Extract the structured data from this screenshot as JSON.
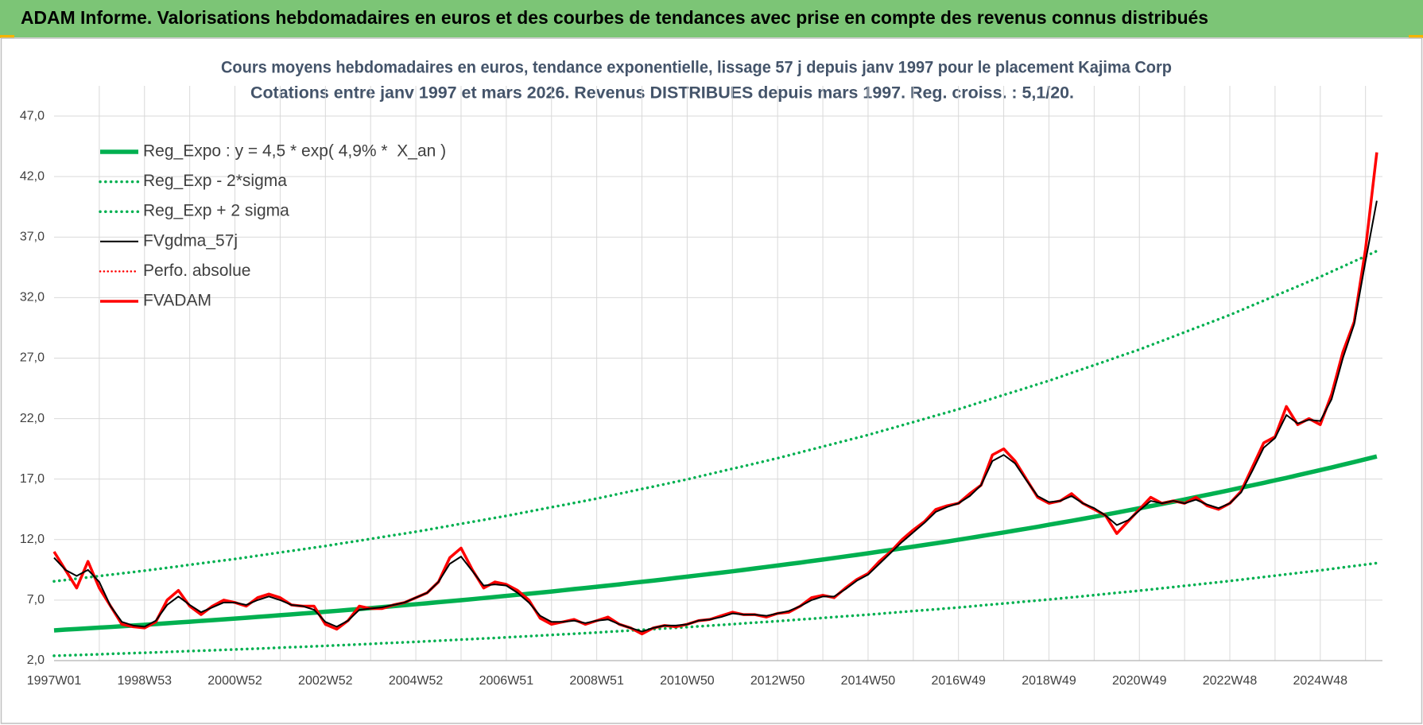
{
  "header": {
    "title": "ADAM Informe. Valorisations hebdomadaires en euros et des courbes de tendances avec prise en compte des revenus connus distribués"
  },
  "chart_data": {
    "type": "line",
    "title": [
      "Cours moyens hebdomadaires en euros, tendance exponentielle, lissage 57 j depuis janv 1997  pour le placement Kajima Corp",
      "Cotations entre janv 1997 et mars 2026. Revenus DISTRIBUES depuis mars 1997. Reg. croiss. : 5,1/20."
    ],
    "categories": [
      "1997W01",
      null,
      null,
      null,
      null,
      null,
      null,
      null,
      "1998W53",
      null,
      null,
      null,
      null,
      null,
      null,
      null,
      "2000W52",
      null,
      null,
      null,
      null,
      null,
      null,
      null,
      "2002W52",
      null,
      null,
      null,
      null,
      null,
      null,
      null,
      "2004W52",
      null,
      null,
      null,
      null,
      null,
      null,
      null,
      "2006W51",
      null,
      null,
      null,
      null,
      null,
      null,
      null,
      "2008W51",
      null,
      null,
      null,
      null,
      null,
      null,
      null,
      "2010W50",
      null,
      null,
      null,
      null,
      null,
      null,
      null,
      "2012W50",
      null,
      null,
      null,
      null,
      null,
      null,
      null,
      "2014W50",
      null,
      null,
      null,
      null,
      null,
      null,
      null,
      "2016W49",
      null,
      null,
      null,
      null,
      null,
      null,
      null,
      "2018W49",
      null,
      null,
      null,
      null,
      null,
      null,
      null,
      "2020W49",
      null,
      null,
      null,
      null,
      null,
      null,
      null,
      "2022W48",
      null,
      null,
      null,
      null,
      null,
      null,
      null,
      "2024W48",
      null,
      null,
      null,
      null,
      null
    ],
    "ylim": [
      2,
      49.5
    ],
    "yticks": [
      {
        "value": 2,
        "label": "2,0"
      },
      {
        "value": 7,
        "label": "7,0"
      },
      {
        "value": 12,
        "label": "12,0"
      },
      {
        "value": 17,
        "label": "17,0"
      },
      {
        "value": 22,
        "label": "22,0"
      },
      {
        "value": 27,
        "label": "27,0"
      },
      {
        "value": 32,
        "label": "32,0"
      },
      {
        "value": 37,
        "label": "37,0"
      },
      {
        "value": 42,
        "label": "42,0"
      },
      {
        "value": 47,
        "label": "47,0"
      }
    ],
    "grid": true,
    "legend": "upper left",
    "series": [
      {
        "name": "Reg_Expo : y = 4,5 * exp( 4,9% *  X_an )",
        "color": "#00b050",
        "style": "solid",
        "width": 5.5,
        "values": [
          4.5,
          4.56,
          4.61,
          4.67,
          4.73,
          4.78,
          4.84,
          4.9,
          4.96,
          5.02,
          5.09,
          5.15,
          5.21,
          5.28,
          5.34,
          5.41,
          5.47,
          5.54,
          5.61,
          5.68,
          5.75,
          5.82,
          5.89,
          5.96,
          6.04,
          6.11,
          6.19,
          6.26,
          6.34,
          6.42,
          6.5,
          6.58,
          6.66,
          6.74,
          6.83,
          6.91,
          6.99,
          7.08,
          7.17,
          7.26,
          7.35,
          7.44,
          7.53,
          7.62,
          7.71,
          7.81,
          7.91,
          8.0,
          8.1,
          8.2,
          8.3,
          8.41,
          8.51,
          8.61,
          8.72,
          8.83,
          8.94,
          9.05,
          9.16,
          9.27,
          9.38,
          9.5,
          9.62,
          9.74,
          9.86,
          9.98,
          10.1,
          10.23,
          10.35,
          10.48,
          10.61,
          10.74,
          10.87,
          11.01,
          11.14,
          11.28,
          11.42,
          11.56,
          11.7,
          11.84,
          11.99,
          12.14,
          12.29,
          12.44,
          12.59,
          12.75,
          12.9,
          13.06,
          13.23,
          13.39,
          13.55,
          13.72,
          13.89,
          14.06,
          14.23,
          14.41,
          14.59,
          14.77,
          14.95,
          15.13,
          15.32,
          15.51,
          15.7,
          15.89,
          16.09,
          16.29,
          16.49,
          16.69,
          16.9,
          17.1,
          17.32,
          17.53,
          17.75,
          17.96,
          18.19,
          18.41,
          18.64,
          18.87
        ]
      },
      {
        "name": "Reg_Exp - 2*sigma",
        "color": "#00b050",
        "style": "dotted",
        "width": 3.5,
        "values": [
          2.4,
          2.43,
          2.46,
          2.49,
          2.52,
          2.56,
          2.59,
          2.62,
          2.65,
          2.68,
          2.72,
          2.75,
          2.79,
          2.82,
          2.85,
          2.89,
          2.92,
          2.96,
          2.99,
          3.03,
          3.07,
          3.11,
          3.14,
          3.18,
          3.22,
          3.26,
          3.3,
          3.34,
          3.38,
          3.43,
          3.47,
          3.51,
          3.55,
          3.6,
          3.64,
          3.69,
          3.74,
          3.78,
          3.83,
          3.87,
          3.92,
          3.97,
          4.02,
          4.07,
          4.12,
          4.17,
          4.22,
          4.27,
          4.32,
          4.38,
          4.43,
          4.49,
          4.55,
          4.6,
          4.66,
          4.71,
          4.77,
          4.83,
          4.89,
          4.95,
          5.01,
          5.08,
          5.14,
          5.2,
          5.26,
          5.33,
          5.4,
          5.46,
          5.53,
          5.6,
          5.67,
          5.73,
          5.8,
          5.87,
          5.95,
          6.02,
          6.1,
          6.17,
          6.24,
          6.32,
          6.39,
          6.47,
          6.56,
          6.64,
          6.72,
          6.8,
          6.89,
          6.97,
          7.05,
          7.14,
          7.23,
          7.32,
          7.41,
          7.51,
          7.6,
          7.69,
          7.78,
          7.88,
          7.98,
          8.08,
          8.18,
          8.28,
          8.38,
          8.48,
          8.58,
          8.69,
          8.8,
          8.91,
          9.02,
          9.13,
          9.24,
          9.35,
          9.46,
          9.58,
          9.7,
          9.82,
          9.94,
          10.06
        ]
      },
      {
        "name": "Reg_Exp + 2 sigma",
        "color": "#00b050",
        "style": "dotted",
        "width": 3.5,
        "values": [
          8.55,
          8.66,
          8.77,
          8.88,
          8.99,
          9.1,
          9.21,
          9.32,
          9.43,
          9.55,
          9.67,
          9.79,
          9.92,
          10.04,
          10.16,
          10.28,
          10.4,
          10.53,
          10.67,
          10.8,
          10.94,
          11.07,
          11.2,
          11.34,
          11.47,
          11.62,
          11.77,
          11.91,
          12.06,
          12.21,
          12.36,
          12.5,
          12.65,
          12.81,
          12.98,
          13.14,
          13.31,
          13.47,
          13.63,
          13.8,
          13.96,
          14.14,
          14.32,
          14.5,
          14.68,
          14.85,
          15.03,
          15.21,
          15.39,
          15.59,
          15.79,
          15.99,
          16.19,
          16.38,
          16.58,
          16.78,
          16.98,
          17.2,
          17.42,
          17.64,
          17.86,
          18.07,
          18.29,
          18.51,
          18.73,
          18.97,
          19.21,
          19.45,
          19.69,
          19.93,
          20.17,
          20.41,
          20.65,
          20.92,
          21.18,
          21.45,
          21.71,
          21.98,
          22.25,
          22.51,
          22.78,
          23.07,
          23.37,
          23.66,
          23.96,
          24.25,
          24.54,
          24.84,
          25.13,
          25.45,
          25.78,
          26.1,
          26.42,
          26.74,
          27.07,
          27.39,
          27.71,
          28.07,
          28.42,
          28.78,
          29.14,
          29.5,
          29.85,
          30.21,
          30.57,
          30.96,
          31.36,
          31.75,
          32.15,
          32.54,
          32.93,
          33.33,
          33.72,
          34.15,
          34.57,
          35.0,
          35.42,
          35.85
        ]
      },
      {
        "name": "FVgdma_57j",
        "color": "#000000",
        "style": "solid",
        "width": 2,
        "values": [
          10.5,
          9.5,
          9.0,
          9.5,
          8.5,
          6.5,
          5.2,
          4.9,
          4.8,
          5.3,
          6.6,
          7.3,
          6.6,
          6.0,
          6.4,
          6.8,
          6.8,
          6.6,
          7.0,
          7.3,
          7.0,
          6.6,
          6.5,
          6.2,
          5.2,
          4.8,
          5.3,
          6.2,
          6.3,
          6.4,
          6.6,
          6.8,
          7.2,
          7.6,
          8.5,
          10.0,
          10.6,
          9.4,
          8.2,
          8.3,
          8.2,
          7.6,
          6.8,
          5.7,
          5.2,
          5.2,
          5.3,
          5.1,
          5.3,
          5.4,
          5.0,
          4.7,
          4.4,
          4.7,
          4.9,
          4.9,
          5.0,
          5.3,
          5.4,
          5.6,
          5.9,
          5.8,
          5.8,
          5.7,
          5.9,
          6.1,
          6.5,
          7.0,
          7.3,
          7.3,
          7.9,
          8.6,
          9.1,
          10.0,
          10.9,
          11.8,
          12.6,
          13.4,
          14.3,
          14.7,
          15.0,
          15.6,
          16.5,
          18.5,
          19.0,
          18.3,
          16.9,
          15.6,
          15.1,
          15.2,
          15.6,
          15.0,
          14.6,
          14.0,
          13.2,
          13.6,
          14.4,
          15.2,
          15.0,
          15.2,
          15.0,
          15.3,
          14.9,
          14.6,
          15.0,
          15.9,
          17.7,
          19.6,
          20.4,
          22.3,
          21.6,
          21.9,
          21.8,
          23.6,
          27.0,
          29.8,
          35.0,
          40.0
        ]
      },
      {
        "name": "Perfo. absolue",
        "color": "#ff0000",
        "style": "dotted",
        "width": 2.5,
        "values": [
          null,
          null,
          null,
          null,
          null,
          null,
          null,
          null,
          null,
          null,
          null,
          null,
          null,
          null,
          null,
          null,
          null,
          null,
          null,
          null,
          null,
          null,
          null,
          null,
          null,
          null,
          null,
          null,
          null,
          null,
          null,
          null,
          null,
          null,
          null,
          null,
          null,
          null,
          null,
          null,
          null,
          null,
          null,
          null,
          null,
          null,
          null,
          null,
          null,
          null,
          null,
          null,
          null,
          null,
          null,
          null,
          null,
          null,
          null,
          null,
          null,
          null,
          null,
          null,
          null,
          null,
          null,
          null,
          null,
          null,
          null,
          null,
          null,
          null,
          null,
          null,
          null,
          null,
          null,
          null,
          null,
          null,
          null,
          null,
          null,
          null,
          null,
          null,
          null,
          null,
          null,
          null,
          null,
          null,
          null,
          null,
          null,
          null,
          null,
          null,
          null,
          null,
          null,
          null,
          null,
          null,
          null,
          null,
          null,
          null,
          null,
          null,
          null,
          null,
          null,
          null,
          null,
          null
        ]
      },
      {
        "name": "FVADAM",
        "color": "#ff0000",
        "style": "solid",
        "width": 3.5,
        "values": [
          11.0,
          9.5,
          8.0,
          10.2,
          8.0,
          6.5,
          5.0,
          4.8,
          4.7,
          5.2,
          7.0,
          7.8,
          6.5,
          5.8,
          6.5,
          7.0,
          6.8,
          6.5,
          7.2,
          7.5,
          7.2,
          6.6,
          6.5,
          6.5,
          5.0,
          4.6,
          5.3,
          6.5,
          6.3,
          6.3,
          6.6,
          6.8,
          7.2,
          7.6,
          8.5,
          10.5,
          11.3,
          9.5,
          8.0,
          8.5,
          8.3,
          7.8,
          7.0,
          5.5,
          5.0,
          5.2,
          5.4,
          5.0,
          5.3,
          5.6,
          5.0,
          4.7,
          4.2,
          4.7,
          4.9,
          4.8,
          5.0,
          5.3,
          5.4,
          5.7,
          6.0,
          5.8,
          5.8,
          5.6,
          5.9,
          6.0,
          6.5,
          7.2,
          7.4,
          7.2,
          8.0,
          8.7,
          9.2,
          10.2,
          11.0,
          12.0,
          12.8,
          13.5,
          14.5,
          14.8,
          15.0,
          15.8,
          16.5,
          19.0,
          19.5,
          18.5,
          17.0,
          15.5,
          15.0,
          15.2,
          15.8,
          15.0,
          14.5,
          14.0,
          12.5,
          13.5,
          14.5,
          15.5,
          15.0,
          15.2,
          15.0,
          15.5,
          14.8,
          14.5,
          15.0,
          16.0,
          18.0,
          20.0,
          20.5,
          23.0,
          21.5,
          22.0,
          21.5,
          24.0,
          27.5,
          30.0,
          36.0,
          44.0
        ]
      }
    ]
  }
}
